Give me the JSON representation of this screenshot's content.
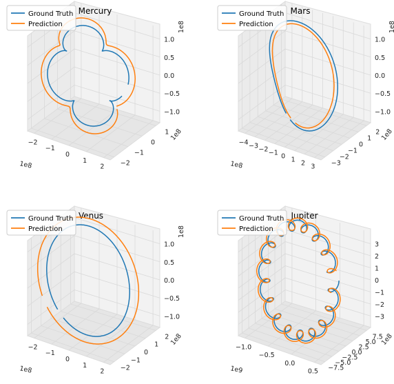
{
  "colors": {
    "ground_truth": "#1f77b4",
    "prediction": "#ff7f0e",
    "pane": "#f2f2f2",
    "grid": "#d9d9d9"
  },
  "legend": {
    "ground_truth": "Ground Truth",
    "prediction": "Prediction",
    "placement": "upper-left"
  },
  "chart_data": [
    {
      "type": "line3d",
      "title": "Mercury",
      "series": [
        {
          "name": "Ground Truth"
        },
        {
          "name": "Prediction"
        }
      ],
      "axes": {
        "x": {
          "ticks": [
            "−2",
            "−1",
            "0",
            "1",
            "2"
          ],
          "scale": "1e8",
          "range": [
            -2,
            2
          ]
        },
        "y": {
          "ticks": [
            "−2",
            "−1",
            "0",
            "1"
          ],
          "scale": "1e8",
          "range": [
            -2,
            1
          ]
        },
        "z": {
          "ticks": [
            "−1.0",
            "−0.5",
            "0.0",
            "0.5",
            "1.0"
          ],
          "scale": "1e8",
          "range": [
            -1,
            1
          ]
        }
      },
      "loops": 5
    },
    {
      "type": "line3d",
      "title": "Mars",
      "series": [
        {
          "name": "Ground Truth"
        },
        {
          "name": "Prediction"
        }
      ],
      "axes": {
        "x": {
          "ticks": [
            "−4",
            "−3",
            "−2",
            "−1",
            "0",
            "1",
            "2",
            "3"
          ],
          "scale": "1e8",
          "range": [
            -4,
            3
          ]
        },
        "y": {
          "ticks": [
            "−3",
            "−2",
            "−1",
            "0",
            "1",
            "2"
          ],
          "scale": "1e8",
          "range": [
            -3,
            2
          ]
        },
        "z": {
          "ticks": [
            "−1.0",
            "−0.5",
            "0.0",
            "0.5",
            "1.0"
          ],
          "scale": "1e8",
          "range": [
            -1,
            1
          ]
        }
      },
      "loops": 2
    },
    {
      "type": "line3d",
      "title": "Venus",
      "series": [
        {
          "name": "Ground Truth"
        },
        {
          "name": "Prediction"
        }
      ],
      "axes": {
        "x": {
          "ticks": [
            "−2",
            "−1",
            "0",
            "1",
            "2"
          ],
          "scale": "1e8",
          "range": [
            -2,
            2
          ]
        },
        "y": {
          "ticks": [
            "−2",
            "−1",
            "0",
            "1",
            "2"
          ],
          "scale": "1e8",
          "range": [
            -2,
            2
          ]
        },
        "z": {
          "ticks": [
            "−1.0",
            "−0.5",
            "0.0",
            "0.5",
            "1.0"
          ],
          "scale": "1e8",
          "range": [
            -1,
            1
          ]
        }
      },
      "loops": 1
    },
    {
      "type": "line3d",
      "title": "Jupiter",
      "series": [
        {
          "name": "Ground Truth"
        },
        {
          "name": "Prediction"
        }
      ],
      "axes": {
        "x": {
          "ticks": [
            "−1.0",
            "−0.5",
            "0.0",
            "0.5"
          ],
          "scale": "1e9",
          "range": [
            -1,
            0.5
          ]
        },
        "y": {
          "ticks": [
            "−7.5",
            "−5.0",
            "−2.5",
            "0.0",
            "2.5",
            "5.0",
            "7.5"
          ],
          "scale": "1e8",
          "range": [
            -7.5,
            7.5
          ]
        },
        "z": {
          "ticks": [
            "−3",
            "−2",
            "−1",
            "0",
            "1",
            "2",
            "3"
          ],
          "scale": "",
          "range": [
            -3,
            3
          ]
        }
      },
      "loops": 18
    }
  ]
}
